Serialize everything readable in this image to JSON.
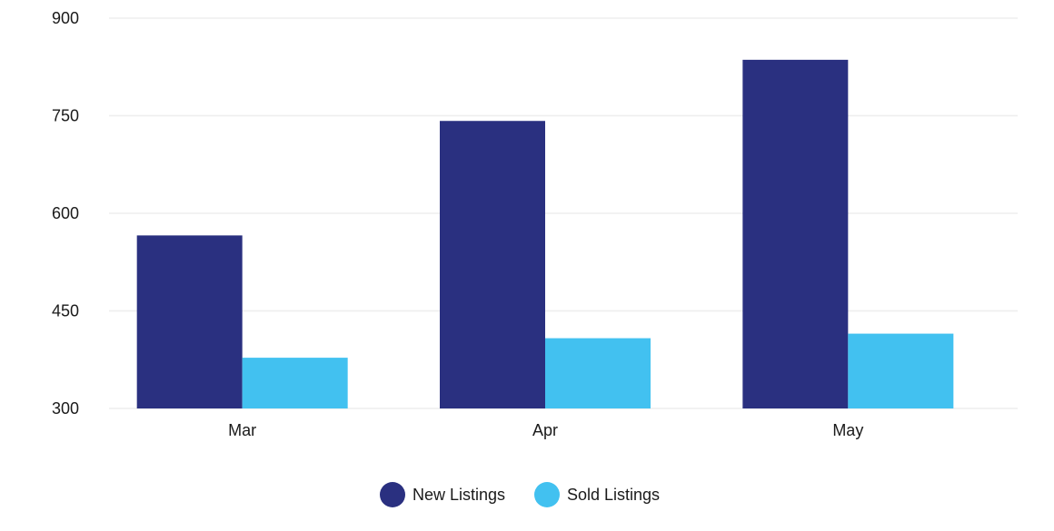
{
  "chart_data": {
    "type": "bar",
    "categories": [
      "Mar",
      "Apr",
      "May"
    ],
    "series": [
      {
        "name": "New Listings",
        "color": "#2a3080",
        "values": [
          566,
          742,
          836
        ]
      },
      {
        "name": "Sold Listings",
        "color": "#42c1f0",
        "values": [
          378,
          408,
          415
        ]
      }
    ],
    "ylim": [
      300,
      900
    ],
    "yticks": [
      300,
      450,
      600,
      750,
      900
    ],
    "grid": true,
    "gridColor": "#eeeeee",
    "legend": "bottom-center"
  }
}
